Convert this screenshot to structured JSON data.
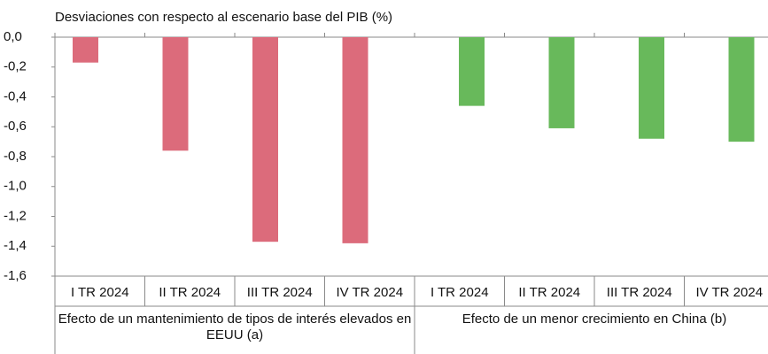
{
  "chart_data": {
    "type": "bar",
    "title": "Desviaciones con respecto al escenario base del PIB (%)",
    "categories": [
      "I TR 2024",
      "II TR 2024",
      "III TR 2024",
      "IV TR 2024",
      "I TR 2024",
      "II TR 2024",
      "III TR 2024",
      "IV TR 2024"
    ],
    "groups": [
      "Efecto de un mantenimiento de tipos de interés elevados en EEUU (a)",
      "Efecto de un menor crecimiento en China (b)"
    ],
    "series": [
      {
        "color": "#dc6b7b",
        "values": [
          -0.17,
          -0.76,
          -1.37,
          -1.38,
          null,
          null,
          null,
          null
        ]
      },
      {
        "color": "#68b95b",
        "values": [
          null,
          null,
          null,
          null,
          -0.46,
          -0.61,
          -0.68,
          -0.7
        ]
      }
    ],
    "ylim": [
      -1.6,
      0
    ],
    "yticks": [
      {
        "value": 0,
        "label": "0,0"
      },
      {
        "value": -0.2,
        "label": "-0,2"
      },
      {
        "value": -0.4,
        "label": "-0,4"
      },
      {
        "value": -0.6,
        "label": "-0,6"
      },
      {
        "value": -0.8,
        "label": "-0,8"
      },
      {
        "value": -1.0,
        "label": "-1,0"
      },
      {
        "value": -1.2,
        "label": "-1,2"
      },
      {
        "value": -1.4,
        "label": "-1,4"
      },
      {
        "value": -1.6,
        "label": "-1,6"
      }
    ]
  }
}
